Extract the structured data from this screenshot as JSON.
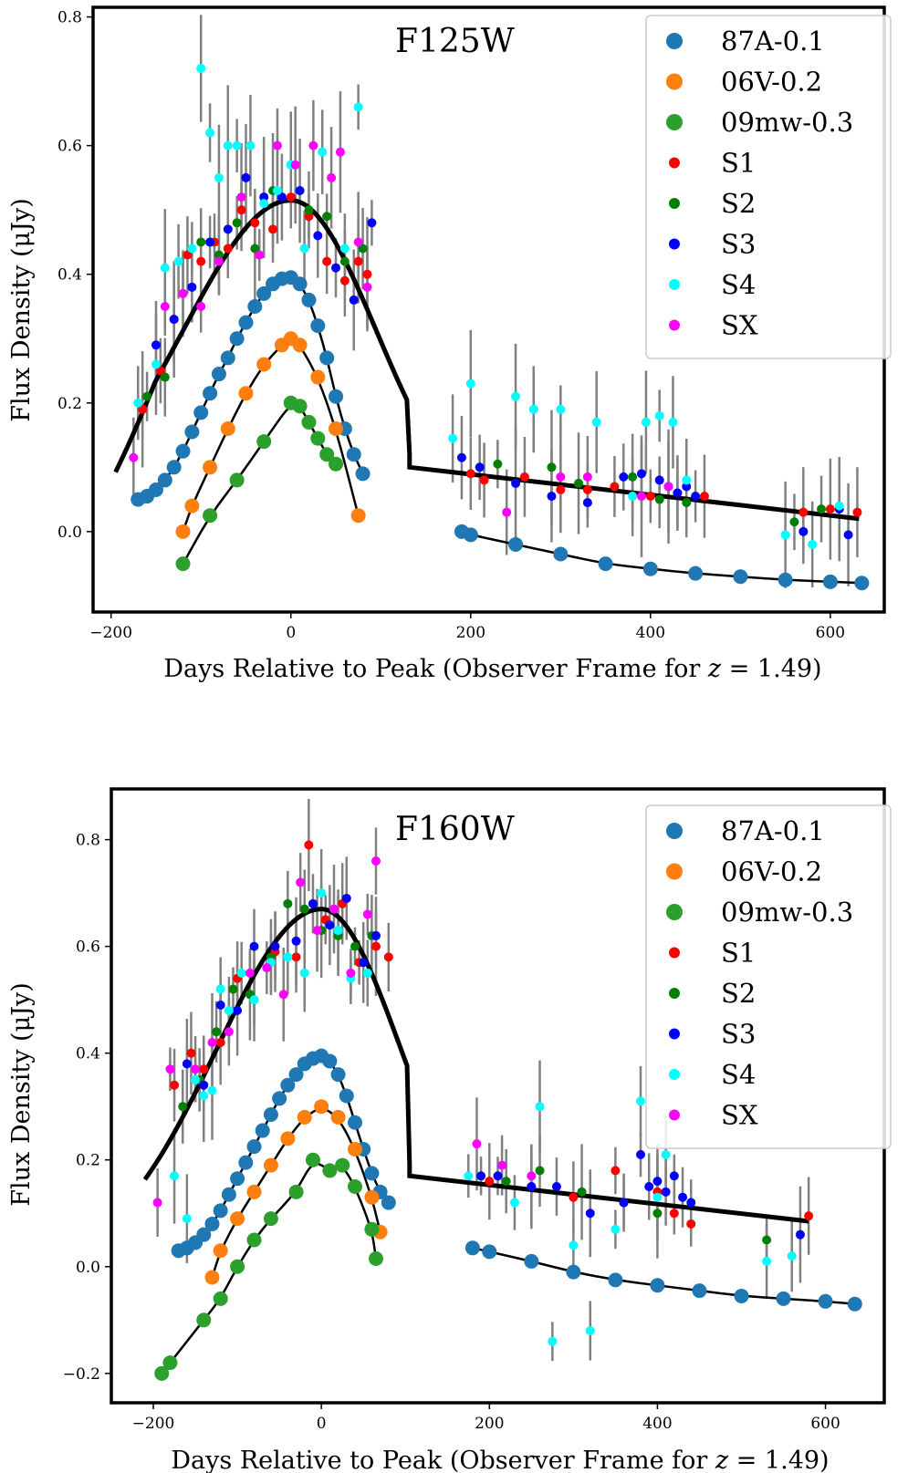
{
  "colors": {
    "87A-0.1": "#1f77b4",
    "06V-0.2": "#ff7f0e",
    "09mw-0.3": "#2ca02c",
    "S1": "#ff0000",
    "S2": "#008000",
    "S3": "#0000ff",
    "S4": "#00ffff",
    "SX": "#ff00ff",
    "errorbar": "#808080",
    "model": "#000000"
  },
  "chart_data": [
    {
      "type": "scatter",
      "title": "F125W",
      "xlabel": "Days Relative to Peak (Observer Frame for ",
      "xlabel_math_var": "z",
      "xlabel_math_rest": " = 1.49)",
      "ylabel": "Flux Density (μJy)",
      "xlim": [
        -220,
        660
      ],
      "ylim": [
        -0.125,
        0.815
      ],
      "xticks": [
        -200,
        0,
        200,
        400,
        600
      ],
      "xtick_labels": [
        "−200",
        "0",
        "200",
        "400",
        "600"
      ],
      "yticks": [
        0.0,
        0.2,
        0.4,
        0.6,
        0.8
      ],
      "ytick_labels": [
        "0.0",
        "0.2",
        "0.4",
        "0.6",
        "0.8"
      ],
      "legend_position": "top-right",
      "legend": [
        "87A-0.1",
        "06V-0.2",
        "09mw-0.3",
        "S1",
        "S2",
        "S3",
        "S4",
        "SX"
      ],
      "template_series": [
        {
          "name": "87A-0.1",
          "x": [
            -170,
            -160,
            -150,
            -140,
            -130,
            -120,
            -110,
            -100,
            -90,
            -80,
            -70,
            -60,
            -50,
            -40,
            -30,
            -20,
            -10,
            0,
            10,
            20,
            30,
            40,
            50,
            60,
            70,
            80,
            190,
            200,
            250,
            300,
            350,
            400,
            450,
            500,
            550,
            600,
            635
          ],
          "values": [
            0.05,
            0.055,
            0.065,
            0.08,
            0.1,
            0.125,
            0.155,
            0.185,
            0.215,
            0.245,
            0.27,
            0.3,
            0.325,
            0.35,
            0.37,
            0.385,
            0.393,
            0.395,
            0.385,
            0.36,
            0.32,
            0.27,
            0.21,
            0.16,
            0.12,
            0.09,
            0.0,
            -0.005,
            -0.02,
            -0.035,
            -0.05,
            -0.058,
            -0.065,
            -0.07,
            -0.075,
            -0.078,
            -0.08
          ]
        },
        {
          "name": "06V-0.2",
          "x": [
            -120,
            -110,
            -90,
            -70,
            -50,
            -30,
            -10,
            0,
            10,
            30,
            50,
            75
          ],
          "values": [
            0.0,
            0.04,
            0.1,
            0.16,
            0.215,
            0.26,
            0.29,
            0.3,
            0.29,
            0.24,
            0.16,
            0.025
          ]
        },
        {
          "name": "09mw-0.3",
          "x": [
            -120,
            -90,
            -60,
            -30,
            0,
            10,
            20,
            30,
            40,
            50
          ],
          "values": [
            -0.05,
            0.025,
            0.08,
            0.14,
            0.2,
            0.195,
            0.17,
            0.145,
            0.12,
            0.105
          ]
        }
      ],
      "observed_series": [
        {
          "name": "S1",
          "x": [
            -165,
            -145,
            -130,
            -115,
            -100,
            -85,
            -70,
            -55,
            -40,
            -20,
            0,
            20,
            40,
            60,
            75,
            85,
            200,
            215,
            260,
            300,
            330,
            360,
            400,
            430,
            460,
            570,
            600,
            630
          ],
          "values": [
            0.19,
            0.25,
            0.33,
            0.43,
            0.42,
            0.45,
            0.44,
            0.5,
            0.48,
            0.47,
            0.52,
            0.49,
            0.42,
            0.39,
            0.42,
            0.4,
            0.09,
            0.08,
            0.085,
            0.065,
            0.065,
            0.07,
            0.055,
            0.06,
            0.055,
            0.03,
            0.035,
            0.03
          ]
        },
        {
          "name": "S2",
          "x": [
            -160,
            -140,
            -120,
            -100,
            -80,
            -60,
            -40,
            -20,
            0,
            20,
            40,
            60,
            80,
            230,
            290,
            320,
            380,
            410,
            440,
            560,
            590
          ],
          "values": [
            0.21,
            0.24,
            0.37,
            0.45,
            0.43,
            0.48,
            0.44,
            0.53,
            0.57,
            0.5,
            0.49,
            0.42,
            0.44,
            0.105,
            0.1,
            0.075,
            0.085,
            0.05,
            0.045,
            0.015,
            0.035
          ]
        },
        {
          "name": "S3",
          "x": [
            -150,
            -130,
            -110,
            -90,
            -70,
            -50,
            -30,
            -10,
            10,
            30,
            50,
            70,
            90,
            190,
            210,
            250,
            290,
            330,
            370,
            390,
            410,
            420,
            430,
            440,
            450,
            570,
            610,
            620
          ],
          "values": [
            0.29,
            0.33,
            0.38,
            0.45,
            0.47,
            0.55,
            0.52,
            0.52,
            0.53,
            0.46,
            0.41,
            0.36,
            0.48,
            0.115,
            0.1,
            0.075,
            0.055,
            0.045,
            0.085,
            0.09,
            0.08,
            0.07,
            0.06,
            0.07,
            0.055,
            0.0,
            0.035,
            -0.005
          ]
        },
        {
          "name": "S4",
          "x": [
            -170,
            -150,
            -140,
            -125,
            -110,
            -100,
            -90,
            -80,
            -70,
            -60,
            -45,
            -30,
            -15,
            0,
            15,
            35,
            60,
            75,
            180,
            200,
            250,
            270,
            300,
            340,
            380,
            395,
            410,
            425,
            440,
            550,
            580,
            610
          ],
          "values": [
            0.2,
            0.26,
            0.41,
            0.42,
            0.44,
            0.72,
            0.62,
            0.55,
            0.6,
            0.6,
            0.6,
            0.51,
            0.53,
            0.57,
            0.44,
            0.59,
            0.44,
            0.66,
            0.145,
            0.23,
            0.21,
            0.19,
            0.19,
            0.17,
            0.055,
            0.17,
            0.18,
            0.17,
            0.08,
            -0.005,
            -0.02,
            0.04
          ]
        },
        {
          "name": "SX",
          "x": [
            -175,
            -140,
            -120,
            -100,
            -80,
            -55,
            -35,
            -15,
            5,
            25,
            45,
            55,
            75,
            85,
            240,
            300,
            330,
            390,
            420
          ],
          "values": [
            0.115,
            0.35,
            0.37,
            0.35,
            0.42,
            0.52,
            0.43,
            0.6,
            0.57,
            0.6,
            0.55,
            0.59,
            0.45,
            0.38,
            0.03,
            0.085,
            0.085,
            0.055,
            0.07
          ]
        }
      ]
    },
    {
      "type": "scatter",
      "title": "F160W",
      "xlabel": "Days Relative to Peak (Observer Frame for ",
      "xlabel_math_var": "z",
      "xlabel_math_rest": " = 1.49)",
      "ylabel": "Flux Density (μJy)",
      "xlim": [
        -250,
        670
      ],
      "ylim": [
        -0.255,
        0.895
      ],
      "xticks": [
        -200,
        0,
        200,
        400,
        600
      ],
      "xtick_labels": [
        "−200",
        "0",
        "200",
        "400",
        "600"
      ],
      "yticks": [
        -0.2,
        0.0,
        0.2,
        0.4,
        0.6,
        0.8
      ],
      "ytick_labels": [
        "−0.2",
        "0.0",
        "0.2",
        "0.4",
        "0.6",
        "0.8"
      ],
      "legend_position": "top-right",
      "legend": [
        "87A-0.1",
        "06V-0.2",
        "09mw-0.3",
        "S1",
        "S2",
        "S3",
        "S4",
        "SX"
      ],
      "template_series": [
        {
          "name": "87A-0.1",
          "x": [
            -170,
            -160,
            -150,
            -140,
            -130,
            -120,
            -110,
            -100,
            -90,
            -80,
            -70,
            -60,
            -50,
            -40,
            -30,
            -20,
            -10,
            0,
            10,
            20,
            30,
            40,
            50,
            60,
            70,
            80,
            180,
            200,
            250,
            300,
            350,
            400,
            450,
            500,
            550,
            600,
            635
          ],
          "values": [
            0.03,
            0.035,
            0.045,
            0.06,
            0.08,
            0.105,
            0.135,
            0.165,
            0.195,
            0.225,
            0.255,
            0.285,
            0.315,
            0.34,
            0.36,
            0.38,
            0.39,
            0.395,
            0.385,
            0.36,
            0.32,
            0.27,
            0.22,
            0.175,
            0.14,
            0.12,
            0.035,
            0.028,
            0.01,
            -0.01,
            -0.025,
            -0.035,
            -0.045,
            -0.055,
            -0.06,
            -0.065,
            -0.07
          ]
        },
        {
          "name": "06V-0.2",
          "x": [
            -130,
            -120,
            -100,
            -80,
            -60,
            -40,
            -20,
            0,
            20,
            40,
            60,
            70
          ],
          "values": [
            -0.02,
            0.03,
            0.09,
            0.14,
            0.19,
            0.24,
            0.28,
            0.3,
            0.28,
            0.22,
            0.13,
            0.065
          ]
        },
        {
          "name": "09mw-0.3",
          "x": [
            -190,
            -180,
            -140,
            -120,
            -100,
            -80,
            -60,
            -30,
            -10,
            10,
            25,
            40,
            60,
            65
          ],
          "values": [
            -0.2,
            -0.18,
            -0.1,
            -0.06,
            0.0,
            0.05,
            0.09,
            0.14,
            0.2,
            0.18,
            0.19,
            0.15,
            0.07,
            0.015
          ]
        }
      ],
      "observed_series": [
        {
          "name": "S1",
          "x": [
            -175,
            -155,
            -140,
            -120,
            -100,
            -80,
            -55,
            -30,
            -15,
            5,
            25,
            45,
            65,
            80,
            200,
            250,
            300,
            350,
            400,
            420,
            440,
            580
          ],
          "values": [
            0.34,
            0.4,
            0.37,
            0.42,
            0.54,
            0.5,
            0.59,
            0.58,
            0.79,
            0.65,
            0.68,
            0.57,
            0.6,
            0.58,
            0.16,
            0.15,
            0.13,
            0.18,
            0.14,
            0.1,
            0.08,
            0.095
          ]
        },
        {
          "name": "S2",
          "x": [
            -165,
            -145,
            -125,
            -105,
            -85,
            -60,
            -40,
            -20,
            0,
            20,
            40,
            60,
            220,
            260,
            310,
            360,
            400,
            530
          ],
          "values": [
            0.3,
            0.35,
            0.44,
            0.52,
            0.51,
            0.58,
            0.68,
            0.67,
            0.63,
            0.62,
            0.6,
            0.62,
            0.16,
            0.18,
            0.14,
            0.12,
            0.1,
            0.05
          ]
        },
        {
          "name": "S3",
          "x": [
            -160,
            -140,
            -120,
            -100,
            -80,
            -55,
            -30,
            -10,
            10,
            30,
            50,
            65,
            190,
            210,
            250,
            280,
            320,
            360,
            380,
            390,
            400,
            410,
            420,
            430,
            440,
            570
          ],
          "values": [
            0.38,
            0.34,
            0.49,
            0.48,
            0.6,
            0.6,
            0.61,
            0.68,
            0.64,
            0.69,
            0.57,
            0.62,
            0.17,
            0.17,
            0.15,
            0.15,
            0.1,
            0.12,
            0.21,
            0.15,
            0.16,
            0.14,
            0.17,
            0.13,
            0.12,
            0.06
          ]
        },
        {
          "name": "S4",
          "x": [
            -175,
            -160,
            -150,
            -140,
            -130,
            -120,
            -110,
            -95,
            -80,
            -60,
            -40,
            -20,
            0,
            20,
            35,
            55,
            175,
            230,
            260,
            275,
            300,
            320,
            350,
            380,
            400,
            410,
            530,
            560
          ],
          "values": [
            0.17,
            0.09,
            0.35,
            0.32,
            0.33,
            0.52,
            0.48,
            0.55,
            0.5,
            0.57,
            0.58,
            0.55,
            0.7,
            0.63,
            0.54,
            0.55,
            0.17,
            0.12,
            0.3,
            -0.14,
            0.04,
            -0.12,
            0.07,
            0.31,
            0.13,
            0.21,
            0.01,
            0.02
          ]
        },
        {
          "name": "SX",
          "x": [
            -195,
            -180,
            -150,
            -130,
            -110,
            -85,
            -65,
            -45,
            -25,
            -5,
            15,
            35,
            55,
            65,
            185,
            215,
            250
          ],
          "values": [
            0.12,
            0.37,
            0.37,
            0.42,
            0.44,
            0.55,
            0.56,
            0.51,
            0.72,
            0.63,
            0.67,
            0.55,
            0.66,
            0.76,
            0.23,
            0.19,
            0.17
          ]
        }
      ]
    }
  ]
}
